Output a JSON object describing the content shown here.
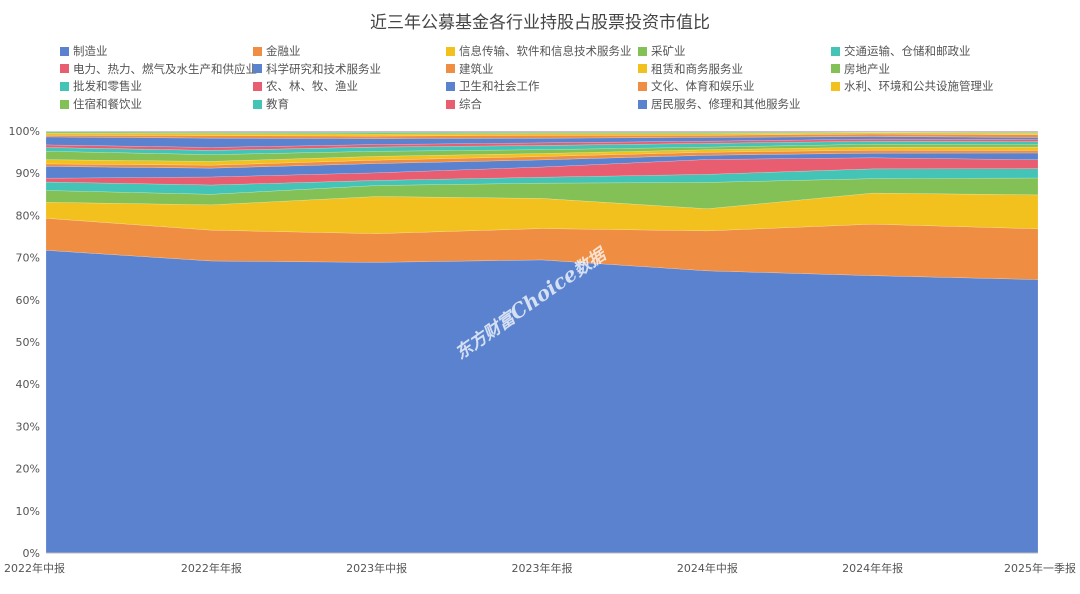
{
  "chart_data": {
    "type": "area",
    "stacked": "percent",
    "title": "近三年公募基金各行业持股占股票投资市值比",
    "xlabel": "",
    "ylabel": "",
    "ylim": [
      0,
      100
    ],
    "yticks": [
      "0%",
      "10%",
      "20%",
      "30%",
      "40%",
      "50%",
      "60%",
      "70%",
      "80%",
      "90%",
      "100%"
    ],
    "categories": [
      "2022年中报",
      "2022年年报",
      "2023年中报",
      "2023年年报",
      "2024年中报",
      "2024年年报",
      "2025年一季报"
    ],
    "legend_position": "top",
    "series": [
      {
        "name": "制造业",
        "color": "#5a82cf",
        "values": [
          71.8,
          69.2,
          68.8,
          69.1,
          66.4,
          65.2,
          64.6
        ]
      },
      {
        "name": "金融业",
        "color": "#ef8d43",
        "values": [
          7.6,
          7.3,
          6.8,
          7.4,
          9.4,
          12.1,
          12.0
        ]
      },
      {
        "name": "信息传输、软件和信息技术服务业",
        "color": "#f2c11d",
        "values": [
          3.8,
          6.0,
          8.8,
          7.1,
          5.2,
          7.3,
          8.0
        ]
      },
      {
        "name": "采矿业",
        "color": "#83c156",
        "values": [
          2.8,
          2.5,
          2.6,
          3.6,
          6.2,
          3.4,
          4.0
        ]
      },
      {
        "name": "交通运输、仓储和邮政业",
        "color": "#44c4b6",
        "values": [
          2.0,
          2.2,
          1.2,
          1.4,
          1.9,
          2.3,
          2.2
        ]
      },
      {
        "name": "电力、热力、燃气及水生产和供应业",
        "color": "#e85d6f",
        "values": [
          0.9,
          1.9,
          1.8,
          2.4,
          3.5,
          2.6,
          2.1
        ]
      },
      {
        "name": "科学研究和技术服务业",
        "color": "#5a82cf",
        "values": [
          2.8,
          2.1,
          2.2,
          1.7,
          1.0,
          1.1,
          1.6
        ]
      },
      {
        "name": "建筑业",
        "color": "#ef8d43",
        "values": [
          0.6,
          0.7,
          0.8,
          0.8,
          0.7,
          0.7,
          0.6
        ]
      },
      {
        "name": "租赁和商务服务业",
        "color": "#f2c11d",
        "values": [
          1.0,
          0.9,
          0.9,
          0.7,
          0.6,
          0.7,
          0.8
        ]
      },
      {
        "name": "房地产业",
        "color": "#83c156",
        "values": [
          2.0,
          1.6,
          1.2,
          0.9,
          0.6,
          0.7,
          0.6
        ]
      },
      {
        "name": "批发和零售业",
        "color": "#44c4b6",
        "values": [
          0.9,
          1.0,
          1.0,
          1.0,
          0.9,
          0.7,
          0.7
        ]
      },
      {
        "name": "农、林、牧、渔业",
        "color": "#e85d6f",
        "values": [
          0.6,
          0.7,
          0.6,
          0.6,
          0.5,
          0.5,
          0.5
        ]
      },
      {
        "name": "卫生和社会工作",
        "color": "#5a82cf",
        "values": [
          1.9,
          2.2,
          1.4,
          1.1,
          0.9,
          0.6,
          0.5
        ]
      },
      {
        "name": "文化、体育和娱乐业",
        "color": "#ef8d43",
        "values": [
          0.4,
          0.6,
          0.6,
          0.7,
          0.5,
          0.6,
          0.6
        ]
      },
      {
        "name": "水利、环境和公共设施管理业",
        "color": "#f2c11d",
        "values": [
          0.5,
          0.5,
          0.5,
          0.4,
          0.4,
          0.3,
          0.4
        ]
      },
      {
        "name": "住宿和餐饮业",
        "color": "#83c156",
        "values": [
          0.3,
          0.3,
          0.3,
          0.3,
          0.3,
          0.1,
          0.2
        ]
      },
      {
        "name": "教育",
        "color": "#44c4b6",
        "values": [
          0.1,
          0.1,
          0.2,
          0.1,
          0.1,
          0.1,
          0.1
        ]
      },
      {
        "name": "综合",
        "color": "#e85d6f",
        "values": [
          0.05,
          0.1,
          0.1,
          0.1,
          0.1,
          0.1,
          0.1
        ]
      },
      {
        "name": "居民服务、修理和其他服务业",
        "color": "#5a82cf",
        "values": [
          0.05,
          0.1,
          0.1,
          0.1,
          0.1,
          0.1,
          0.1
        ]
      }
    ]
  },
  "watermark": "东方财富Choice数据"
}
